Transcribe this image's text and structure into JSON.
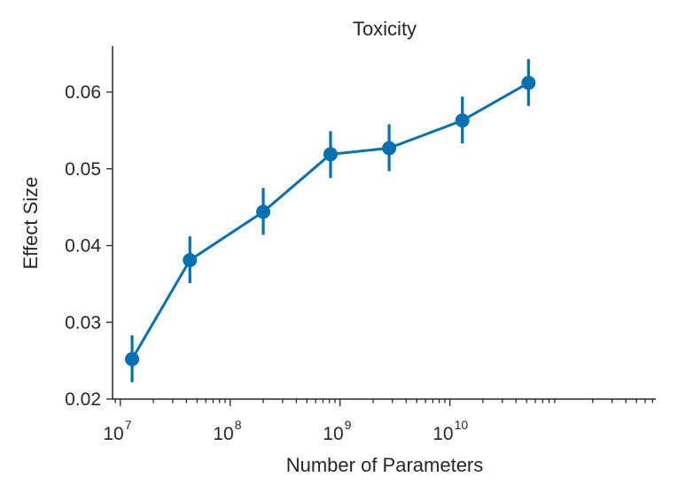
{
  "chart_data": {
    "type": "line",
    "title": "Toxicity",
    "xlabel": "Number of Parameters",
    "ylabel": "Effect Size",
    "x_scale": "log",
    "xlim": [
      8500000,
      750000000000
    ],
    "ylim": [
      0.02,
      0.066
    ],
    "grid": false,
    "legend": "none",
    "color": "#0571b0",
    "x_ticks": [
      {
        "value": 10000000,
        "base": "10",
        "exp": "7"
      },
      {
        "value": 100000000,
        "base": "10",
        "exp": "8"
      },
      {
        "value": 1000000000,
        "base": "10",
        "exp": "9"
      },
      {
        "value": 10000000000,
        "base": "10",
        "exp": "10"
      }
    ],
    "y_ticks": [
      {
        "value": 0.02,
        "label": "0.02"
      },
      {
        "value": 0.03,
        "label": "0.03"
      },
      {
        "value": 0.04,
        "label": "0.04"
      },
      {
        "value": 0.05,
        "label": "0.05"
      },
      {
        "value": 0.06,
        "label": "0.06"
      }
    ],
    "points": [
      {
        "x": 12800000,
        "y": 0.0252,
        "ylow": 0.0222,
        "yhigh": 0.0283
      },
      {
        "x": 43000000,
        "y": 0.0381,
        "ylow": 0.0351,
        "yhigh": 0.0412
      },
      {
        "x": 200000000,
        "y": 0.0444,
        "ylow": 0.0414,
        "yhigh": 0.0475
      },
      {
        "x": 820000000,
        "y": 0.0519,
        "ylow": 0.0488,
        "yhigh": 0.0549
      },
      {
        "x": 2800000000,
        "y": 0.0527,
        "ylow": 0.0497,
        "yhigh": 0.0558
      },
      {
        "x": 13000000000,
        "y": 0.0563,
        "ylow": 0.0533,
        "yhigh": 0.0594
      },
      {
        "x": 52000000000,
        "y": 0.0612,
        "ylow": 0.0582,
        "yhigh": 0.0643
      }
    ]
  }
}
